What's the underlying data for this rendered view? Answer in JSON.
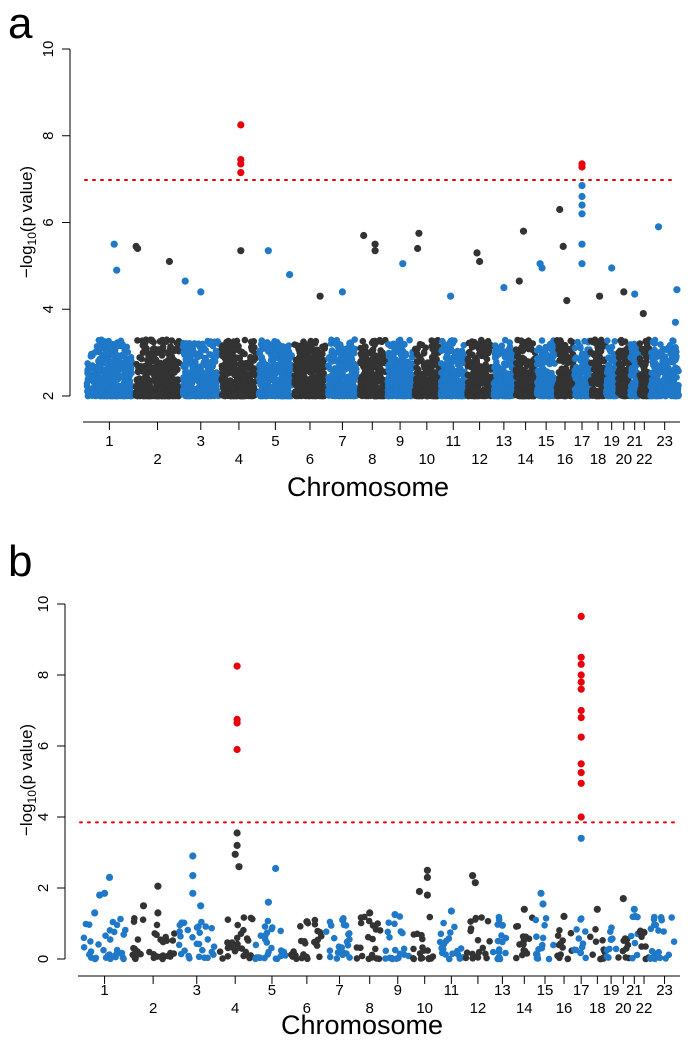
{
  "chart_data": [
    {
      "id": "a",
      "type": "scatter",
      "panel_label": "a",
      "xlabel": "Chromosome",
      "ylabel_prefix": "−log",
      "ylabel_sub": "10",
      "ylabel_suffix": "(p value)",
      "ylim": [
        2,
        10
      ],
      "yticks": [
        2,
        4,
        6,
        8,
        10
      ],
      "threshold": 6.98,
      "chromosomes": [
        "1",
        "2",
        "3",
        "4",
        "5",
        "6",
        "7",
        "8",
        "9",
        "10",
        "11",
        "12",
        "13",
        "14",
        "15",
        "16",
        "17",
        "18",
        "19",
        "20",
        "21",
        "22",
        "23"
      ],
      "chrom_sizes": [
        248,
        242,
        198,
        190,
        181,
        171,
        159,
        145,
        138,
        134,
        135,
        133,
        114,
        107,
        102,
        90,
        83,
        80,
        59,
        64,
        47,
        51,
        156
      ],
      "point_floor": 2.0,
      "base_max": 3.3,
      "colors": {
        "odd": "#1f78c8",
        "even": "#333333",
        "significant": "#e8000b",
        "threshold": "#e8000b"
      },
      "notable_points": [
        {
          "chr": "1",
          "pos": 0.6,
          "p": 5.5
        },
        {
          "chr": "1",
          "pos": 0.65,
          "p": 4.9
        },
        {
          "chr": "2",
          "pos": 0.05,
          "p": 5.45
        },
        {
          "chr": "2",
          "pos": 0.08,
          "p": 5.4
        },
        {
          "chr": "2",
          "pos": 0.75,
          "p": 5.1
        },
        {
          "chr": "3",
          "pos": 0.1,
          "p": 4.65
        },
        {
          "chr": "3",
          "pos": 0.5,
          "p": 4.4
        },
        {
          "chr": "4",
          "pos": 0.55,
          "p": 8.25
        },
        {
          "chr": "4",
          "pos": 0.55,
          "p": 7.45
        },
        {
          "chr": "4",
          "pos": 0.55,
          "p": 7.35
        },
        {
          "chr": "4",
          "pos": 0.55,
          "p": 7.15
        },
        {
          "chr": "4",
          "pos": 0.55,
          "p": 5.35
        },
        {
          "chr": "5",
          "pos": 0.3,
          "p": 5.35
        },
        {
          "chr": "5",
          "pos": 0.9,
          "p": 4.8
        },
        {
          "chr": "6",
          "pos": 0.8,
          "p": 4.3
        },
        {
          "chr": "7",
          "pos": 0.5,
          "p": 4.4
        },
        {
          "chr": "8",
          "pos": 0.2,
          "p": 5.7
        },
        {
          "chr": "8",
          "pos": 0.6,
          "p": 5.5
        },
        {
          "chr": "8",
          "pos": 0.6,
          "p": 5.35
        },
        {
          "chr": "9",
          "pos": 0.6,
          "p": 5.05
        },
        {
          "chr": "10",
          "pos": 0.2,
          "p": 5.75
        },
        {
          "chr": "10",
          "pos": 0.15,
          "p": 5.4
        },
        {
          "chr": "11",
          "pos": 0.4,
          "p": 4.3
        },
        {
          "chr": "12",
          "pos": 0.4,
          "p": 5.3
        },
        {
          "chr": "12",
          "pos": 0.5,
          "p": 5.1
        },
        {
          "chr": "13",
          "pos": 0.5,
          "p": 4.5
        },
        {
          "chr": "14",
          "pos": 0.4,
          "p": 5.8
        },
        {
          "chr": "14",
          "pos": 0.2,
          "p": 4.65
        },
        {
          "chr": "15",
          "pos": 0.2,
          "p": 5.05
        },
        {
          "chr": "15",
          "pos": 0.3,
          "p": 4.95
        },
        {
          "chr": "16",
          "pos": 0.2,
          "p": 6.3
        },
        {
          "chr": "16",
          "pos": 0.4,
          "p": 5.45
        },
        {
          "chr": "16",
          "pos": 0.6,
          "p": 4.2
        },
        {
          "chr": "17",
          "pos": 0.5,
          "p": 7.35
        },
        {
          "chr": "17",
          "pos": 0.5,
          "p": 7.28
        },
        {
          "chr": "17",
          "pos": 0.5,
          "p": 6.85
        },
        {
          "chr": "17",
          "pos": 0.5,
          "p": 6.6
        },
        {
          "chr": "17",
          "pos": 0.5,
          "p": 6.4
        },
        {
          "chr": "17",
          "pos": 0.5,
          "p": 6.2
        },
        {
          "chr": "17",
          "pos": 0.5,
          "p": 5.5
        },
        {
          "chr": "17",
          "pos": 0.5,
          "p": 5.05
        },
        {
          "chr": "18",
          "pos": 0.6,
          "p": 4.3
        },
        {
          "chr": "19",
          "pos": 0.5,
          "p": 4.95
        },
        {
          "chr": "20",
          "pos": 0.5,
          "p": 4.4
        },
        {
          "chr": "21",
          "pos": 0.5,
          "p": 4.35
        },
        {
          "chr": "22",
          "pos": 0.4,
          "p": 3.9
        },
        {
          "chr": "23",
          "pos": 0.3,
          "p": 5.9
        },
        {
          "chr": "23",
          "pos": 0.9,
          "p": 4.45
        },
        {
          "chr": "23",
          "pos": 0.85,
          "p": 3.7
        }
      ]
    },
    {
      "id": "b",
      "type": "scatter",
      "panel_label": "b",
      "xlabel": "Chromosome",
      "ylabel_prefix": "−log",
      "ylabel_sub": "10",
      "ylabel_suffix": "(p value)",
      "ylim": [
        0,
        10
      ],
      "yticks": [
        0,
        2,
        4,
        6,
        8,
        10
      ],
      "threshold": 3.85,
      "chromosomes": [
        "1",
        "2",
        "3",
        "4",
        "5",
        "6",
        "7",
        "8",
        "9",
        "10",
        "11",
        "12",
        "13",
        "14",
        "15",
        "16",
        "17",
        "18",
        "19",
        "20",
        "21",
        "22",
        "23"
      ],
      "chrom_sizes": [
        248,
        242,
        198,
        190,
        181,
        171,
        159,
        145,
        138,
        134,
        135,
        133,
        114,
        107,
        102,
        90,
        83,
        80,
        59,
        64,
        47,
        51,
        156
      ],
      "point_floor": 0.0,
      "base_max": 1.2,
      "colors": {
        "odd": "#1f78c8",
        "even": "#333333",
        "significant": "#e8000b",
        "threshold": "#e8000b"
      },
      "notable_points": [
        {
          "chr": "1",
          "pos": 0.6,
          "p": 2.3
        },
        {
          "chr": "1",
          "pos": 0.5,
          "p": 1.85
        },
        {
          "chr": "1",
          "pos": 0.4,
          "p": 1.8
        },
        {
          "chr": "1",
          "pos": 0.3,
          "p": 1.3
        },
        {
          "chr": "2",
          "pos": 0.6,
          "p": 2.05
        },
        {
          "chr": "2",
          "pos": 0.3,
          "p": 1.5
        },
        {
          "chr": "2",
          "pos": 0.6,
          "p": 1.3
        },
        {
          "chr": "3",
          "pos": 0.4,
          "p": 2.9
        },
        {
          "chr": "3",
          "pos": 0.4,
          "p": 2.35
        },
        {
          "chr": "3",
          "pos": 0.4,
          "p": 1.85
        },
        {
          "chr": "3",
          "pos": 0.6,
          "p": 1.5
        },
        {
          "chr": "4",
          "pos": 0.55,
          "p": 8.25
        },
        {
          "chr": "4",
          "pos": 0.55,
          "p": 6.75
        },
        {
          "chr": "4",
          "pos": 0.55,
          "p": 6.65
        },
        {
          "chr": "4",
          "pos": 0.55,
          "p": 5.9
        },
        {
          "chr": "4",
          "pos": 0.55,
          "p": 3.55
        },
        {
          "chr": "4",
          "pos": 0.55,
          "p": 3.2
        },
        {
          "chr": "4",
          "pos": 0.5,
          "p": 2.95
        },
        {
          "chr": "4",
          "pos": 0.6,
          "p": 2.6
        },
        {
          "chr": "5",
          "pos": 0.6,
          "p": 2.55
        },
        {
          "chr": "5",
          "pos": 0.4,
          "p": 1.6
        },
        {
          "chr": "6",
          "pos": 0.5,
          "p": 1.05
        },
        {
          "chr": "7",
          "pos": 0.6,
          "p": 1.1
        },
        {
          "chr": "8",
          "pos": 0.5,
          "p": 1.3
        },
        {
          "chr": "9",
          "pos": 0.4,
          "p": 1.25
        },
        {
          "chr": "10",
          "pos": 0.6,
          "p": 2.5
        },
        {
          "chr": "10",
          "pos": 0.6,
          "p": 2.3
        },
        {
          "chr": "10",
          "pos": 0.3,
          "p": 1.9
        },
        {
          "chr": "10",
          "pos": 0.6,
          "p": 1.8
        },
        {
          "chr": "11",
          "pos": 0.5,
          "p": 1.35
        },
        {
          "chr": "12",
          "pos": 0.3,
          "p": 2.35
        },
        {
          "chr": "12",
          "pos": 0.4,
          "p": 2.15
        },
        {
          "chr": "13",
          "pos": 0.5,
          "p": 0.95
        },
        {
          "chr": "14",
          "pos": 0.5,
          "p": 1.4
        },
        {
          "chr": "15",
          "pos": 0.3,
          "p": 1.85
        },
        {
          "chr": "15",
          "pos": 0.4,
          "p": 1.55
        },
        {
          "chr": "16",
          "pos": 0.5,
          "p": 1.2
        },
        {
          "chr": "17",
          "pos": 0.5,
          "p": 9.65
        },
        {
          "chr": "17",
          "pos": 0.5,
          "p": 8.5
        },
        {
          "chr": "17",
          "pos": 0.5,
          "p": 8.3
        },
        {
          "chr": "17",
          "pos": 0.5,
          "p": 8.0
        },
        {
          "chr": "17",
          "pos": 0.5,
          "p": 7.8
        },
        {
          "chr": "17",
          "pos": 0.5,
          "p": 7.6
        },
        {
          "chr": "17",
          "pos": 0.5,
          "p": 7.0
        },
        {
          "chr": "17",
          "pos": 0.5,
          "p": 6.8
        },
        {
          "chr": "17",
          "pos": 0.5,
          "p": 6.25
        },
        {
          "chr": "17",
          "pos": 0.5,
          "p": 5.5
        },
        {
          "chr": "17",
          "pos": 0.5,
          "p": 5.25
        },
        {
          "chr": "17",
          "pos": 0.5,
          "p": 4.95
        },
        {
          "chr": "17",
          "pos": 0.5,
          "p": 4.0
        },
        {
          "chr": "17",
          "pos": 0.5,
          "p": 3.4
        },
        {
          "chr": "18",
          "pos": 0.5,
          "p": 1.4
        },
        {
          "chr": "19",
          "pos": 0.5,
          "p": 0.55
        },
        {
          "chr": "20",
          "pos": 0.5,
          "p": 1.7
        },
        {
          "chr": "21",
          "pos": 0.5,
          "p": 1.4
        },
        {
          "chr": "21",
          "pos": 0.6,
          "p": 1.2
        },
        {
          "chr": "22",
          "pos": 0.5,
          "p": 0.75
        }
      ]
    }
  ]
}
